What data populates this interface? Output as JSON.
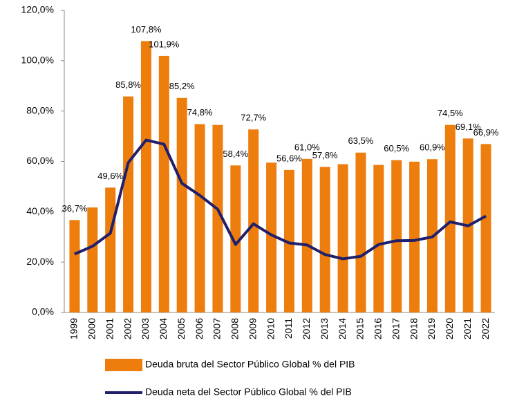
{
  "chart_data": {
    "type": "bar-line",
    "categories": [
      "1999",
      "2000",
      "2001",
      "2002",
      "2003",
      "2004",
      "2005",
      "2006",
      "2007",
      "2008",
      "2009",
      "2010",
      "2011",
      "2012",
      "2013",
      "2014",
      "2015",
      "2016",
      "2017",
      "2018",
      "2019",
      "2020",
      "2021",
      "2022"
    ],
    "series": [
      {
        "name": "Deuda bruta del Sector Público Global % del PIB",
        "type": "bar",
        "color": "#ED7D0C",
        "values": [
          36.7,
          41.7,
          49.6,
          85.8,
          107.8,
          101.9,
          85.2,
          74.8,
          74.5,
          58.4,
          72.7,
          59.5,
          56.6,
          61.0,
          57.8,
          58.9,
          63.5,
          58.6,
          60.5,
          59.9,
          60.9,
          74.5,
          69.1,
          66.9
        ],
        "value_labels": [
          "36,7%",
          null,
          "49,6%",
          "85,8%",
          "107,8%",
          "101,9%",
          "85,2%",
          "74,8%",
          null,
          "58,4%",
          "72,7%",
          null,
          "56,6%",
          "61,0%",
          "57,8%",
          null,
          "63,5%",
          null,
          "60,5%",
          null,
          "60,9%",
          "74,5%",
          "69,1%",
          "66,9%"
        ]
      },
      {
        "name": "Deuda neta del Sector Público Global % del PIB",
        "type": "line",
        "color": "#1F1F6B",
        "values": [
          23.2,
          26.3,
          31.5,
          59.5,
          68.5,
          66.8,
          51.3,
          46.5,
          41.0,
          27.0,
          35.2,
          30.8,
          27.6,
          26.8,
          23.0,
          21.3,
          22.3,
          27.0,
          28.5,
          28.6,
          30.0,
          36.0,
          34.4,
          38.3
        ]
      }
    ],
    "ylim": [
      0,
      120
    ],
    "yticks": [
      {
        "value": 0,
        "label": "0,0%"
      },
      {
        "value": 20,
        "label": "20,0%"
      },
      {
        "value": 40,
        "label": "40,0%"
      },
      {
        "value": 60,
        "label": "60,0%"
      },
      {
        "value": 80,
        "label": "80,0%"
      },
      {
        "value": 100,
        "label": "100,0%"
      },
      {
        "value": 120,
        "label": "120,0%"
      }
    ],
    "grid": false,
    "legend": "bottom"
  }
}
